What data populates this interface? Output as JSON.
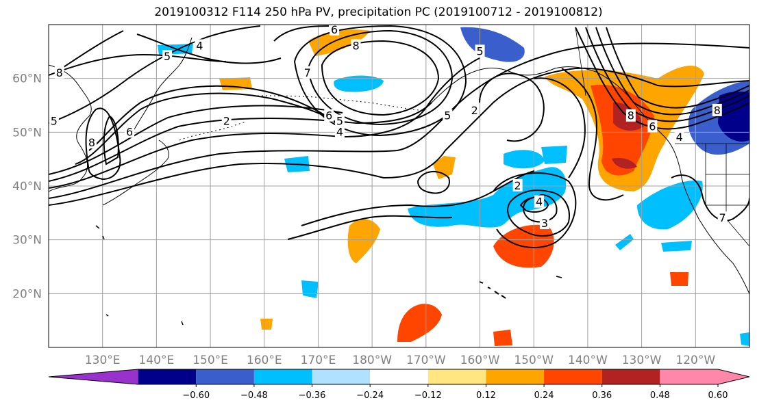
{
  "title": "2019100312 F114 250 hPa PV, precipitation PC (2019100712 - 2019100812)",
  "chart_data": {
    "type": "heatmap",
    "title": "2019100312 F114 250 hPa PV, precipitation PC (2019100712 - 2019100812)",
    "x_tick_labels": [
      "130°E",
      "140°E",
      "150°E",
      "160°E",
      "170°E",
      "180°W",
      "170°W",
      "160°W",
      "150°W",
      "140°W",
      "130°W",
      "120°W"
    ],
    "y_tick_labels": [
      "20°N",
      "30°N",
      "40°N",
      "50°N",
      "60°N"
    ],
    "x_ticks_deg_east": [
      130,
      140,
      150,
      160,
      170,
      180,
      190,
      200,
      210,
      220,
      230,
      240
    ],
    "y_ticks_deg": [
      20,
      30,
      40,
      50,
      60
    ],
    "xlim_deg_east": [
      120,
      250
    ],
    "ylim_deg": [
      10,
      70
    ],
    "grid": true,
    "colorbar": {
      "orientation": "horizontal",
      "extend": "both",
      "tick_labels": [
        "−0.60",
        "−0.48",
        "−0.36",
        "−0.24",
        "−0.12",
        "0.12",
        "0.24",
        "0.36",
        "0.48",
        "0.60"
      ],
      "boundaries": [
        -0.6,
        -0.48,
        -0.36,
        -0.24,
        -0.12,
        0.12,
        0.24,
        0.36,
        0.48,
        0.6
      ],
      "colors": [
        "#9932cc",
        "#00008b",
        "#3a5fcd",
        "#00bfff",
        "#b0e2ff",
        "#ffffff",
        "#ffe680",
        "#ffa500",
        "#ff4500",
        "#b22222",
        "#ff88aa"
      ]
    },
    "contour_labels": [
      {
        "text": "4",
        "lon": 148,
        "lat": 66
      },
      {
        "text": "5",
        "lon": 142,
        "lat": 64
      },
      {
        "text": "8",
        "lon": 122,
        "lat": 61
      },
      {
        "text": "8",
        "lon": 128,
        "lat": 48
      },
      {
        "text": "6",
        "lon": 135,
        "lat": 50
      },
      {
        "text": "5",
        "lon": 121,
        "lat": 52
      },
      {
        "text": "2",
        "lon": 153,
        "lat": 52
      },
      {
        "text": "6",
        "lon": 173,
        "lat": 69
      },
      {
        "text": "8",
        "lon": 177,
        "lat": 66
      },
      {
        "text": "7",
        "lon": 168,
        "lat": 61
      },
      {
        "text": "6",
        "lon": 172,
        "lat": 53
      },
      {
        "text": "5",
        "lon": 174,
        "lat": 52
      },
      {
        "text": "4",
        "lon": 174,
        "lat": 50
      },
      {
        "text": "5",
        "lon": 194,
        "lat": 53
      },
      {
        "text": "2",
        "lon": 199,
        "lat": 54
      },
      {
        "text": "5",
        "lon": 200,
        "lat": 65
      },
      {
        "text": "8",
        "lon": 228,
        "lat": 53
      },
      {
        "text": "6",
        "lon": 232,
        "lat": 51
      },
      {
        "text": "4",
        "lon": 237,
        "lat": 49
      },
      {
        "text": "8",
        "lon": 244,
        "lat": 54
      },
      {
        "text": "2",
        "lon": 207,
        "lat": 40
      },
      {
        "text": "4",
        "lon": 211,
        "lat": 37
      },
      {
        "text": "3",
        "lon": 212,
        "lat": 33
      },
      {
        "text": "7",
        "lon": 245,
        "lat": 34
      }
    ]
  }
}
